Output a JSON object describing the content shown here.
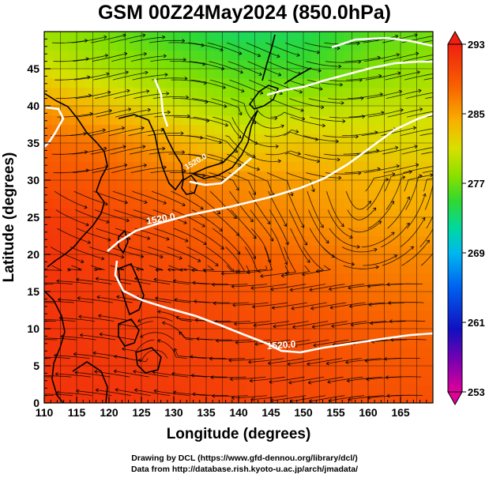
{
  "chart_data": {
    "type": "heatmap",
    "title": "GSM 00Z24May2024 (850.0hPa)",
    "xlabel": "Longitude (degrees)",
    "ylabel": "Latitude  (degrees)",
    "xlim": [
      110,
      170
    ],
    "ylim": [
      0,
      50
    ],
    "xticks": [
      110,
      115,
      120,
      125,
      130,
      135,
      140,
      145,
      150,
      155,
      160,
      165
    ],
    "yticks": [
      0,
      5,
      10,
      15,
      20,
      25,
      30,
      35,
      40,
      45
    ],
    "colorbar": {
      "ticks": [
        293,
        285,
        277,
        269,
        261,
        253
      ],
      "min": 253,
      "max": 293,
      "colors": [
        "#e0009a",
        "#7a00b0",
        "#1010c0",
        "#0060f0",
        "#00b8f0",
        "#00d8a0",
        "#30d830",
        "#88e000",
        "#d8e000",
        "#f8b000",
        "#f86000",
        "#f02010"
      ]
    },
    "field_description": "850 hPa temperature (K) shaded, wind streamlines, 1520 m geopotential height contour",
    "temperature_grid": {
      "lon": [
        110,
        120,
        130,
        140,
        150,
        160,
        170
      ],
      "lat": [
        0,
        10,
        20,
        25,
        30,
        35,
        40,
        45,
        50
      ],
      "values": [
        [
          291.5,
          291.5,
          291,
          290.5,
          290,
          289.5,
          289.5
        ],
        [
          291.5,
          291,
          290.5,
          290,
          289.5,
          288.5,
          288
        ],
        [
          291.5,
          290.5,
          289.5,
          288.5,
          287.5,
          286.5,
          286
        ],
        [
          291,
          290,
          288.5,
          287,
          286,
          285,
          284.5
        ],
        [
          289.5,
          288.5,
          287,
          286,
          285,
          284,
          283.5
        ],
        [
          288,
          287,
          284.5,
          282,
          283,
          282,
          281.5
        ],
        [
          285.5,
          283,
          280.5,
          278.5,
          279.5,
          280,
          280.5
        ],
        [
          281,
          279,
          277.5,
          276,
          275.5,
          277.5,
          278.5
        ],
        [
          278.5,
          277,
          275,
          273.5,
          274,
          276,
          277
        ]
      ]
    },
    "contour_labels": [
      "1520.0",
      "1520.0",
      "1520.0"
    ]
  },
  "credits": {
    "line1": "Drawing by DCL (https://www.gfd-dennou.org/library/dcl/)",
    "line2": "Data from http://database.rish.kyoto-u.ac.jp/arch/jmadata/"
  }
}
